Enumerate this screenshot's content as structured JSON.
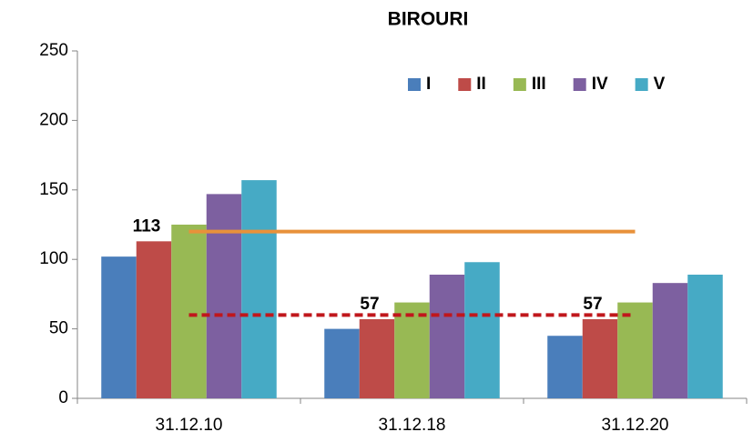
{
  "chart_data": {
    "type": "bar",
    "title": "BIROURI",
    "categories": [
      "31.12.10",
      "31.12.18",
      "31.12.20"
    ],
    "series": [
      {
        "name": "I",
        "color": "#4a7ebb",
        "values": [
          102,
          50,
          45
        ]
      },
      {
        "name": "II",
        "color": "#be4b48",
        "values": [
          113,
          57,
          57
        ],
        "show_values": true
      },
      {
        "name": "III",
        "color": "#98b954",
        "values": [
          125,
          69,
          69
        ]
      },
      {
        "name": "IV",
        "color": "#7d60a0",
        "values": [
          147,
          89,
          83
        ]
      },
      {
        "name": "V",
        "color": "#46aac5",
        "values": [
          157,
          98,
          89
        ]
      }
    ],
    "reference_lines": [
      {
        "value": 120,
        "color": "#e8913a",
        "style": "solid"
      },
      {
        "value": 60,
        "color": "#c0171c",
        "style": "dashed"
      }
    ],
    "ylim": [
      0,
      250
    ],
    "yticks": [
      0,
      50,
      100,
      150,
      200,
      250
    ],
    "grid": false,
    "legend": "top-right"
  }
}
